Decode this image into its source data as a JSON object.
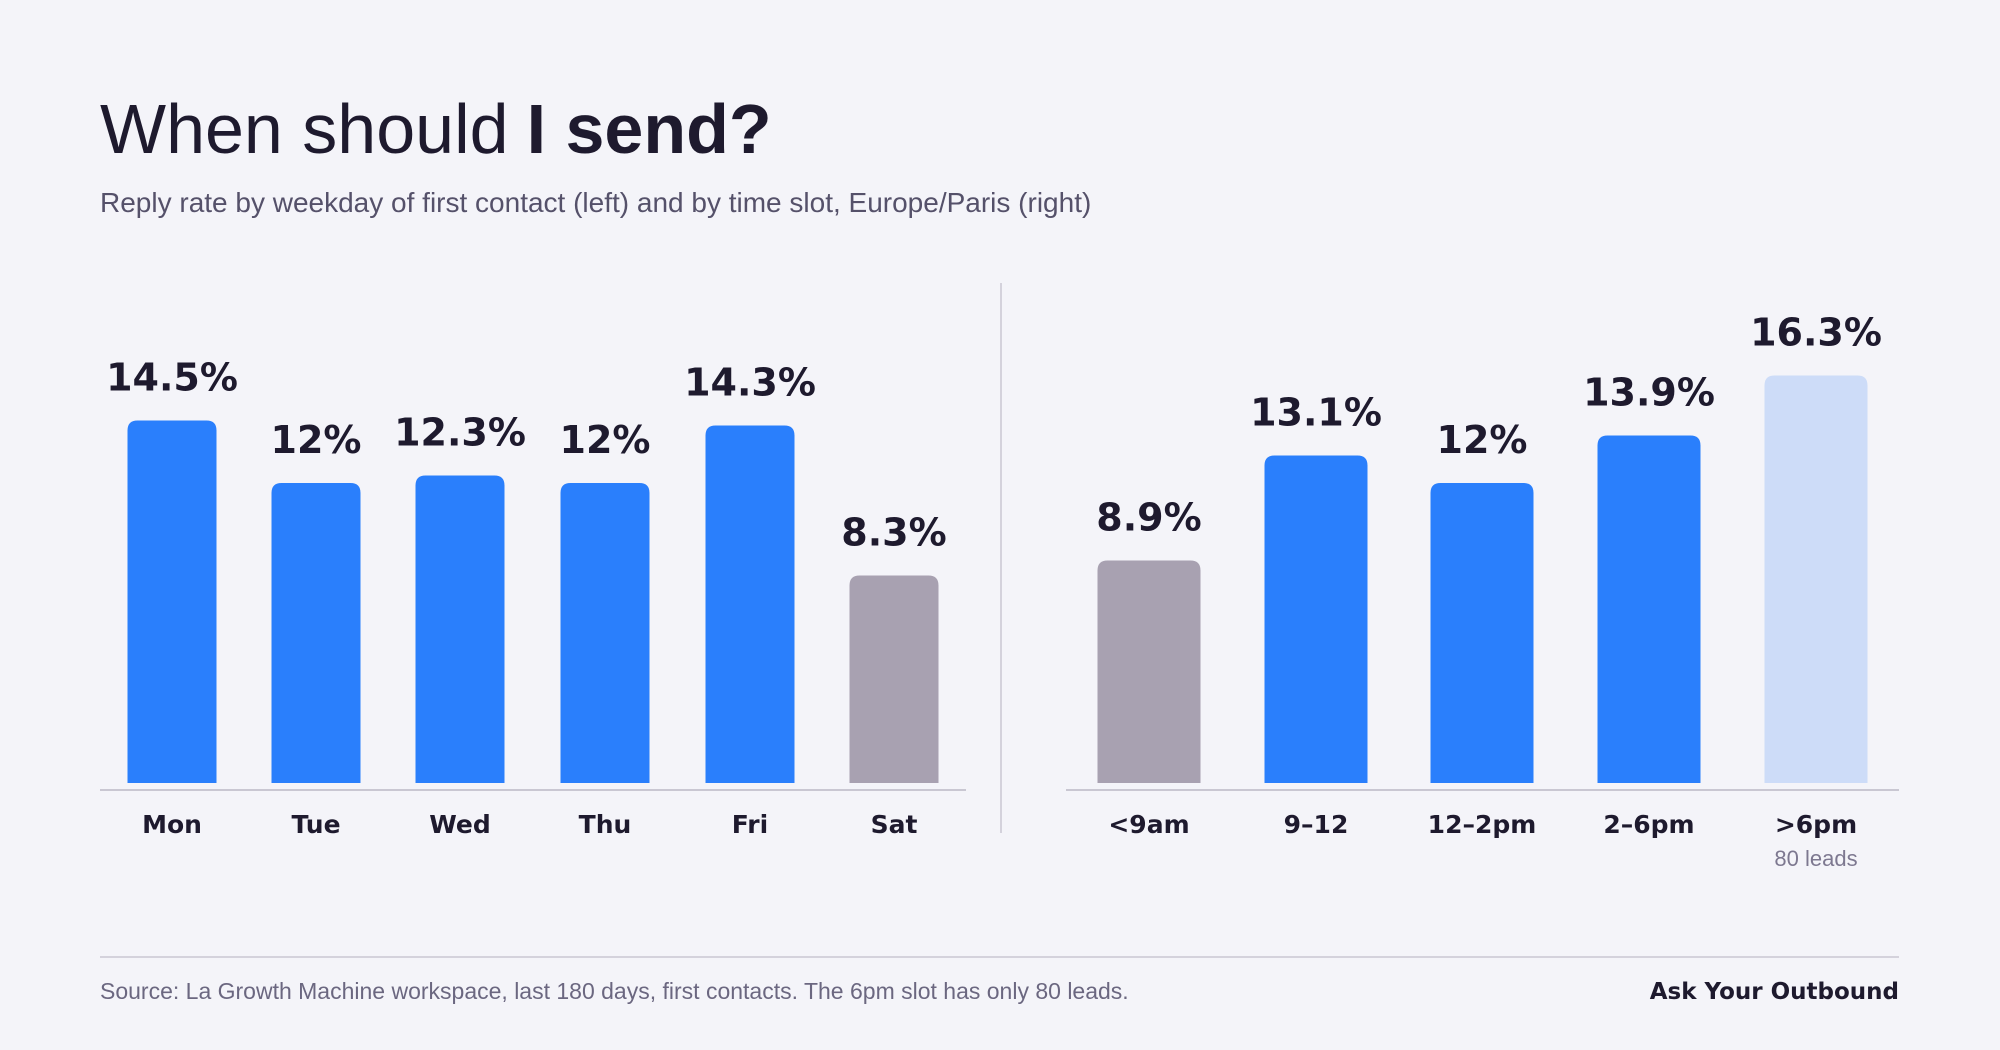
{
  "header": {
    "title_regular": "When should",
    "title_bold": "I send?",
    "subtitle": "Reply rate by weekday of first contact (left) and by time slot, Europe/Paris (right)"
  },
  "chart_data": [
    {
      "type": "bar",
      "categories": [
        "Mon",
        "Tue",
        "Wed",
        "Thu",
        "Fri",
        "Sat"
      ],
      "values": [
        14.5,
        12,
        12.3,
        12,
        14.3,
        8.3
      ],
      "value_labels": [
        "14.5%",
        "12%",
        "12.3%",
        "12%",
        "14.3%",
        "8.3%"
      ],
      "colors": [
        "#2a7ffc",
        "#2a7ffc",
        "#2a7ffc",
        "#2a7ffc",
        "#2a7ffc",
        "#a8a1b1"
      ]
    },
    {
      "type": "bar",
      "categories": [
        "<9am",
        "9–12",
        "12–2pm",
        "2–6pm",
        ">6pm"
      ],
      "values": [
        8.9,
        13.1,
        12,
        13.9,
        16.3
      ],
      "value_labels": [
        "8.9%",
        "13.1%",
        "12%",
        "13.9%",
        "16.3%"
      ],
      "colors": [
        "#a8a1b1",
        "#2a7ffc",
        "#2a7ffc",
        "#2a7ffc",
        "#cddcf8"
      ],
      "category_notes": [
        null,
        null,
        null,
        null,
        "80 leads"
      ]
    }
  ],
  "footer": {
    "source": "Source: La Growth Machine workspace, last 180 days, first contacts. The 6pm slot has only 80 leads.",
    "brand": "Ask Your Outbound"
  }
}
